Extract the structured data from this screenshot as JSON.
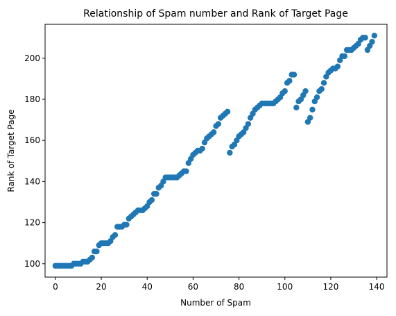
{
  "chart_data": {
    "type": "scatter",
    "title": "Relationship of Spam number and Rank of Target Page",
    "xlabel": "Number of Spam",
    "ylabel": "Rank of Target Page",
    "xlim": [
      -4.5,
      144.5
    ],
    "ylim": [
      93.5,
      216.5
    ],
    "xticks": [
      0,
      20,
      40,
      60,
      80,
      100,
      120,
      140
    ],
    "yticks": [
      100,
      120,
      140,
      160,
      180,
      200
    ],
    "grid": false,
    "legend": "none",
    "marker_color": "#1f77b4",
    "series": [
      {
        "x": [
          0,
          1,
          2,
          3,
          4,
          5,
          6,
          7,
          8,
          9,
          10,
          11,
          12,
          13,
          14,
          15,
          16,
          17,
          18,
          19,
          20,
          21,
          22,
          23,
          24,
          25,
          26,
          27,
          28,
          29,
          30,
          31,
          32,
          33,
          34,
          35,
          36,
          37,
          38,
          39,
          40,
          41,
          42,
          43,
          44,
          45,
          46,
          47,
          48,
          49,
          50,
          51,
          52,
          53,
          54,
          55,
          56,
          57,
          58,
          59,
          60,
          61,
          62,
          63,
          64,
          65,
          66,
          67,
          68,
          69,
          70,
          71,
          72,
          73,
          74,
          75,
          76,
          77,
          78,
          79,
          80,
          81,
          82,
          83,
          84,
          85,
          86,
          87,
          88,
          89,
          90,
          91,
          92,
          93,
          94,
          95,
          96,
          97,
          98,
          99,
          100,
          101,
          102,
          103,
          104,
          105,
          106,
          107,
          108,
          109,
          110,
          111,
          112,
          113,
          114,
          115,
          116,
          117,
          118,
          119,
          120,
          121,
          122,
          123,
          124,
          125,
          126,
          127,
          128,
          129,
          130,
          131,
          132,
          133,
          134,
          135,
          136,
          137,
          138,
          139
        ],
        "y": [
          99,
          99,
          99,
          99,
          99,
          99,
          99,
          99,
          100,
          100,
          100,
          100,
          101,
          101,
          101,
          102,
          103,
          106,
          106,
          109,
          110,
          110,
          110,
          110,
          111,
          113,
          114,
          118,
          118,
          118,
          119,
          119,
          122,
          123,
          124,
          125,
          126,
          126,
          126,
          127,
          128,
          130,
          131,
          134,
          134,
          137,
          138,
          140,
          142,
          142,
          142,
          142,
          142,
          142,
          143,
          144,
          145,
          145,
          149,
          151,
          153,
          154,
          155,
          155,
          156,
          159,
          161,
          162,
          163,
          164,
          167,
          168,
          171,
          172,
          173,
          174,
          154,
          157,
          158,
          160,
          162,
          163,
          164,
          166,
          168,
          171,
          173,
          175,
          176,
          177,
          178,
          178,
          178,
          178,
          178,
          178,
          179,
          180,
          181,
          183,
          184,
          188,
          189,
          192,
          192,
          176,
          179,
          180,
          182,
          184,
          169,
          171,
          175,
          179,
          181,
          184,
          185,
          188,
          191,
          193,
          194,
          195,
          195,
          196,
          199,
          201,
          201,
          204,
          204,
          204,
          205,
          206,
          207,
          209,
          210,
          210,
          204,
          206,
          208,
          211
        ]
      }
    ]
  }
}
